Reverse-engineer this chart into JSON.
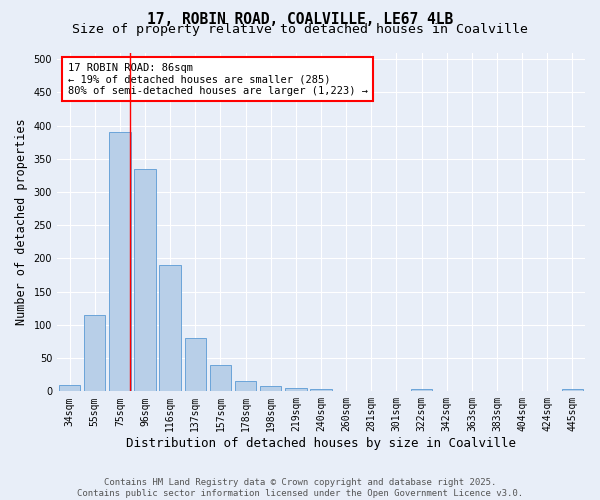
{
  "title": "17, ROBIN ROAD, COALVILLE, LE67 4LB",
  "subtitle": "Size of property relative to detached houses in Coalville",
  "xlabel": "Distribution of detached houses by size in Coalville",
  "ylabel": "Number of detached properties",
  "bin_labels": [
    "34sqm",
    "55sqm",
    "75sqm",
    "96sqm",
    "116sqm",
    "137sqm",
    "157sqm",
    "178sqm",
    "198sqm",
    "219sqm",
    "240sqm",
    "260sqm",
    "281sqm",
    "301sqm",
    "322sqm",
    "342sqm",
    "363sqm",
    "383sqm",
    "404sqm",
    "424sqm",
    "445sqm"
  ],
  "bar_heights": [
    10,
    115,
    390,
    335,
    190,
    80,
    40,
    15,
    8,
    5,
    3,
    0,
    0,
    0,
    3,
    0,
    0,
    0,
    0,
    0,
    3
  ],
  "bar_color": "#b8cfe8",
  "bar_edge_color": "#5b9bd5",
  "vline_bin_index": 2.4,
  "vline_color": "red",
  "annotation_text": "17 ROBIN ROAD: 86sqm\n← 19% of detached houses are smaller (285)\n80% of semi-detached houses are larger (1,223) →",
  "annotation_box_color": "white",
  "annotation_box_edge_color": "red",
  "ylim": [
    0,
    510
  ],
  "yticks": [
    0,
    50,
    100,
    150,
    200,
    250,
    300,
    350,
    400,
    450,
    500
  ],
  "background_color": "#e8eef8",
  "grid_color": "white",
  "footer_text": "Contains HM Land Registry data © Crown copyright and database right 2025.\nContains public sector information licensed under the Open Government Licence v3.0.",
  "title_fontsize": 10.5,
  "subtitle_fontsize": 9.5,
  "xlabel_fontsize": 9,
  "ylabel_fontsize": 8.5,
  "tick_fontsize": 7,
  "annotation_fontsize": 7.5,
  "footer_fontsize": 6.5
}
